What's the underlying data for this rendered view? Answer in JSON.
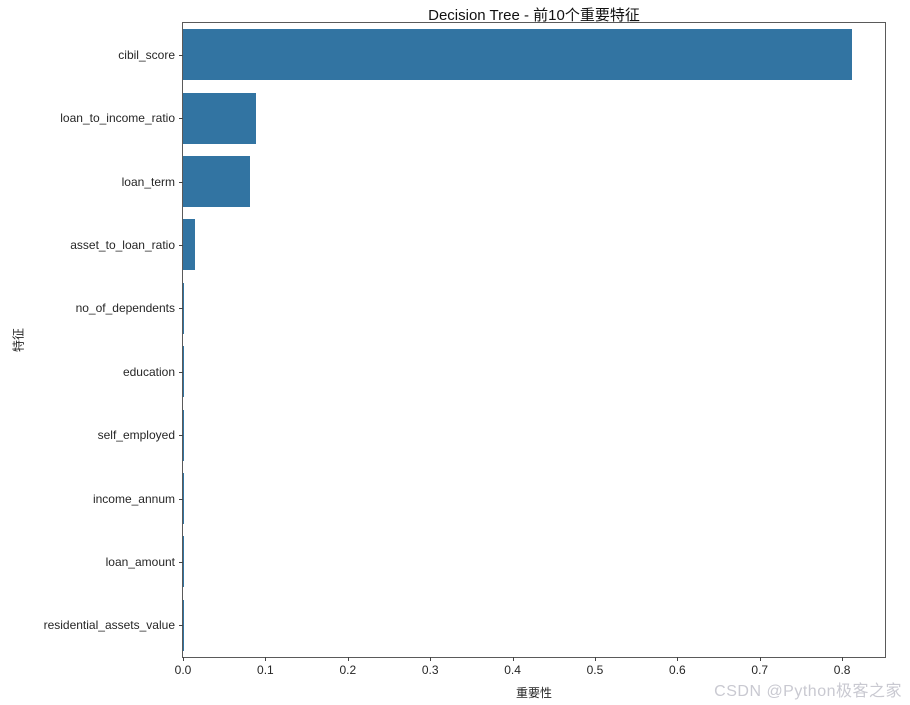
{
  "watermark": {
    "text": "CSDN @Python极客之家"
  },
  "chart_data": {
    "type": "bar",
    "orientation": "horizontal",
    "title": "Decision Tree - 前10个重要特征",
    "xlabel": "重要性",
    "ylabel": "特征",
    "categories": [
      "cibil_score",
      "loan_to_income_ratio",
      "loan_term",
      "asset_to_loan_ratio",
      "no_of_dependents",
      "education",
      "self_employed",
      "income_annum",
      "loan_amount",
      "residential_assets_value"
    ],
    "values": [
      0.812,
      0.088,
      0.081,
      0.015,
      0.001,
      0.001,
      0.0005,
      0.0004,
      0.0003,
      0.0002
    ],
    "xlim": [
      0,
      0.852
    ],
    "xticks": [
      0.0,
      0.1,
      0.2,
      0.3,
      0.4,
      0.5,
      0.6,
      0.7,
      0.8
    ],
    "xtick_labels": [
      "0.0",
      "0.1",
      "0.2",
      "0.3",
      "0.4",
      "0.5",
      "0.6",
      "0.7",
      "0.8"
    ],
    "bar_color": "#3274a2",
    "grid": false,
    "legend": null
  }
}
